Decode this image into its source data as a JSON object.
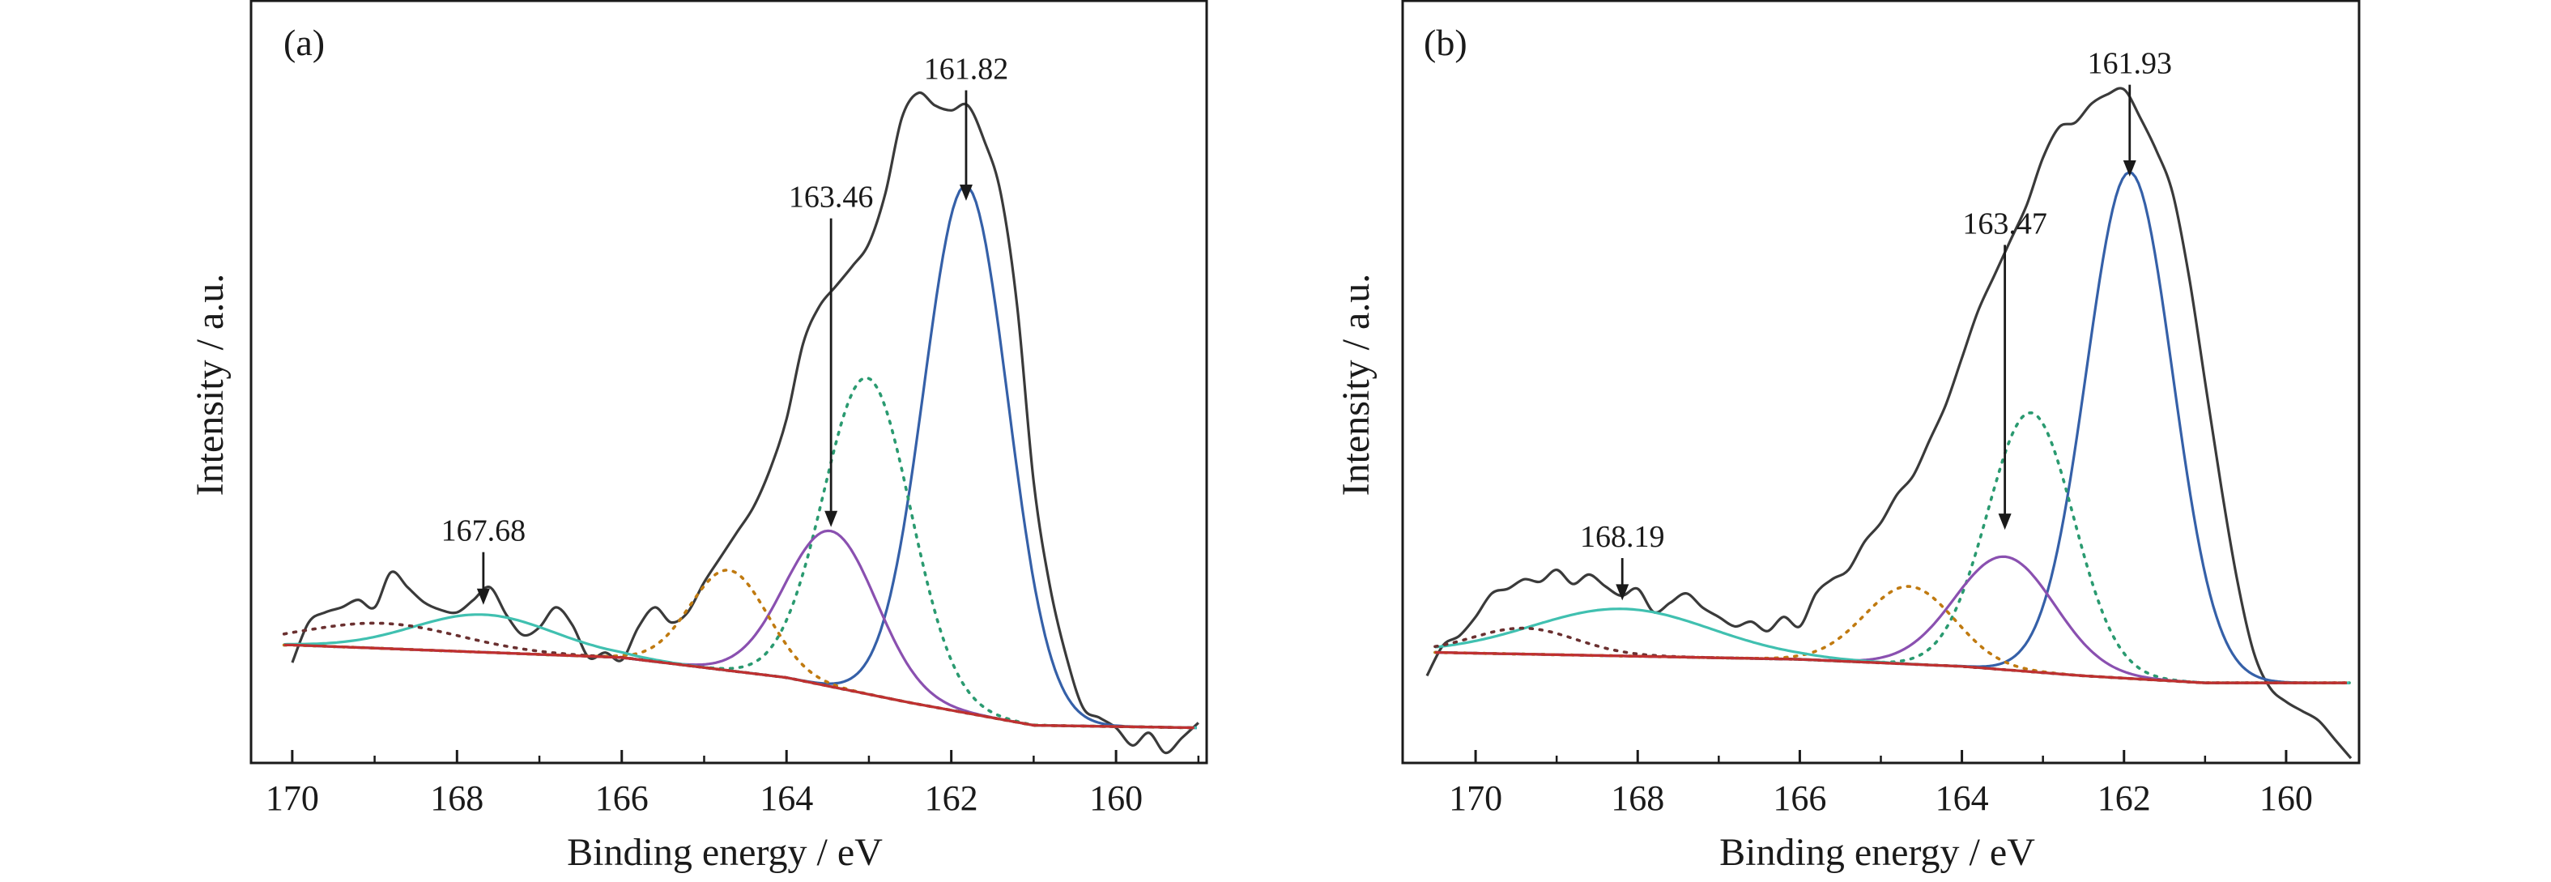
{
  "chart_data": [
    {
      "type": "line",
      "panel_label": "(a)",
      "xlabel": "Binding energy / eV",
      "ylabel": "Intensity / a.u.",
      "xlim": [
        170.5,
        158.9
      ],
      "x_reversed": true,
      "xticks": [
        170,
        168,
        166,
        164,
        162,
        160
      ],
      "y_ticks_shown": false,
      "grid": false,
      "series": [
        {
          "role": "raw",
          "color": "#3a3a3a",
          "style": "solid",
          "x": [
            170.0,
            169.8,
            169.6,
            169.4,
            169.2,
            169.0,
            168.8,
            168.6,
            168.4,
            168.2,
            168.0,
            167.8,
            167.6,
            167.4,
            167.2,
            167.0,
            166.8,
            166.6,
            166.4,
            166.2,
            166.0,
            165.8,
            165.6,
            165.4,
            165.2,
            165.0,
            164.8,
            164.6,
            164.4,
            164.2,
            164.0,
            163.8,
            163.6,
            163.4,
            163.2,
            163.0,
            162.8,
            162.6,
            162.4,
            162.2,
            162.0,
            161.8,
            161.6,
            161.4,
            161.2,
            161.0,
            160.8,
            160.6,
            160.4,
            160.2,
            160.0,
            159.8,
            159.6,
            159.4,
            159.2,
            159.0
          ],
          "y": [
            0.28,
            0.44,
            0.48,
            0.5,
            0.53,
            0.5,
            0.64,
            0.58,
            0.52,
            0.49,
            0.48,
            0.53,
            0.58,
            0.47,
            0.39,
            0.42,
            0.5,
            0.43,
            0.3,
            0.32,
            0.29,
            0.42,
            0.5,
            0.44,
            0.48,
            0.6,
            0.7,
            0.8,
            0.9,
            1.05,
            1.25,
            1.55,
            1.7,
            1.78,
            1.86,
            1.95,
            2.15,
            2.45,
            2.55,
            2.5,
            2.48,
            2.5,
            2.36,
            2.15,
            1.7,
            1.0,
            0.58,
            0.3,
            0.1,
            0.06,
            0.02,
            -0.05,
            0.0,
            -0.08,
            -0.02,
            0.04
          ]
        },
        {
          "role": "fit",
          "peak_center": 161.82,
          "fwhm": 1.2,
          "height": 2.1,
          "color": "#3560a8",
          "style": "solid"
        },
        {
          "role": "fit",
          "peak_center": 163.02,
          "fwhm": 1.25,
          "height": 1.26,
          "color": "#2a9a70",
          "style": "dotted"
        },
        {
          "role": "fit",
          "peak_center": 163.46,
          "fwhm": 1.3,
          "height": 0.62,
          "color": "#8a50b0",
          "style": "solid"
        },
        {
          "role": "fit",
          "peak_center": 164.7,
          "fwhm": 1.1,
          "height": 0.4,
          "color": "#c07a10",
          "style": "dotted"
        },
        {
          "role": "fit",
          "peak_center": 167.68,
          "fwhm": 2.0,
          "height": 0.15,
          "color": "#40c0b0",
          "style": "solid"
        },
        {
          "role": "fit",
          "peak_center": 168.9,
          "fwhm": 2.2,
          "height": 0.1,
          "color": "#6a3030",
          "style": "dotted"
        },
        {
          "role": "background",
          "color": "#c03030",
          "style": "solid",
          "x": [
            170.0,
            166.0,
            164.0,
            162.5,
            161.0,
            159.0
          ],
          "y": [
            0.35,
            0.3,
            0.22,
            0.12,
            0.03,
            0.02
          ]
        }
      ],
      "annotations": [
        {
          "text": "161.82",
          "x": 161.82,
          "arrow_from_y": 2.56,
          "arrow_to_y": 2.12
        },
        {
          "text": "163.46",
          "x": 163.46,
          "arrow_from_y": 2.05,
          "arrow_to_y": 0.82
        },
        {
          "text": "167.68",
          "x": 167.68,
          "arrow_from_y": 0.72,
          "arrow_to_y": 0.51
        }
      ],
      "ylim": [
        -0.12,
        2.92
      ]
    },
    {
      "type": "line",
      "panel_label": "(b)",
      "xlabel": "Binding energy / eV",
      "ylabel": "Intensity / a.u.",
      "xlim": [
        170.9,
        159.1
      ],
      "x_reversed": true,
      "xticks": [
        170,
        168,
        166,
        164,
        162,
        160
      ],
      "y_ticks_shown": false,
      "grid": false,
      "series": [
        {
          "role": "raw",
          "color": "#3a3a3a",
          "style": "solid",
          "x": [
            170.6,
            170.4,
            170.2,
            170.0,
            169.8,
            169.6,
            169.4,
            169.2,
            169.0,
            168.8,
            168.6,
            168.4,
            168.2,
            168.0,
            167.8,
            167.6,
            167.4,
            167.2,
            167.0,
            166.8,
            166.6,
            166.4,
            166.2,
            166.0,
            165.8,
            165.6,
            165.4,
            165.2,
            165.0,
            164.8,
            164.6,
            164.4,
            164.2,
            164.0,
            163.8,
            163.6,
            163.4,
            163.2,
            163.0,
            162.8,
            162.6,
            162.4,
            162.2,
            162.0,
            161.8,
            161.6,
            161.4,
            161.2,
            161.0,
            160.8,
            160.6,
            160.4,
            160.2,
            160.0,
            159.8,
            159.6,
            159.4,
            159.2
          ],
          "y": [
            0.05,
            0.18,
            0.22,
            0.3,
            0.4,
            0.42,
            0.46,
            0.45,
            0.5,
            0.44,
            0.48,
            0.43,
            0.39,
            0.42,
            0.32,
            0.36,
            0.4,
            0.34,
            0.3,
            0.26,
            0.28,
            0.24,
            0.3,
            0.26,
            0.4,
            0.46,
            0.5,
            0.62,
            0.7,
            0.82,
            0.9,
            1.05,
            1.2,
            1.4,
            1.6,
            1.75,
            1.9,
            2.05,
            2.25,
            2.38,
            2.4,
            2.48,
            2.52,
            2.54,
            2.42,
            2.28,
            2.1,
            1.75,
            1.3,
            0.85,
            0.45,
            0.15,
            0.0,
            -0.06,
            -0.1,
            -0.14,
            -0.22,
            -0.3
          ]
        },
        {
          "role": "fit",
          "peak_center": 161.93,
          "fwhm": 1.25,
          "height": 2.15,
          "color": "#3560a8",
          "style": "solid"
        },
        {
          "role": "fit",
          "peak_center": 163.15,
          "fwhm": 1.25,
          "height": 1.1,
          "color": "#2a9a70",
          "style": "dotted"
        },
        {
          "role": "fit",
          "peak_center": 163.47,
          "fwhm": 1.45,
          "height": 0.48,
          "color": "#8a50b0",
          "style": "solid"
        },
        {
          "role": "fit",
          "peak_center": 164.65,
          "fwhm": 1.3,
          "height": 0.33,
          "color": "#c07a10",
          "style": "dotted"
        },
        {
          "role": "fit",
          "peak_center": 168.19,
          "fwhm": 2.6,
          "height": 0.2,
          "color": "#40c0b0",
          "style": "solid"
        },
        {
          "role": "fit",
          "peak_center": 169.4,
          "fwhm": 1.5,
          "height": 0.11,
          "color": "#6a3030",
          "style": "dotted"
        },
        {
          "role": "background",
          "color": "#c03030",
          "style": "solid",
          "x": [
            170.6,
            166.0,
            164.0,
            162.5,
            161.0,
            159.1
          ],
          "y": [
            0.15,
            0.12,
            0.09,
            0.05,
            0.02,
            0.02
          ]
        }
      ],
      "annotations": [
        {
          "text": "161.93",
          "x": 161.93,
          "arrow_from_y": 2.56,
          "arrow_to_y": 2.17
        },
        {
          "text": "163.47",
          "x": 163.47,
          "arrow_from_y": 1.88,
          "arrow_to_y": 0.67
        },
        {
          "text": "168.19",
          "x": 168.19,
          "arrow_from_y": 0.55,
          "arrow_to_y": 0.37
        }
      ],
      "ylim": [
        -0.32,
        2.92
      ]
    }
  ]
}
